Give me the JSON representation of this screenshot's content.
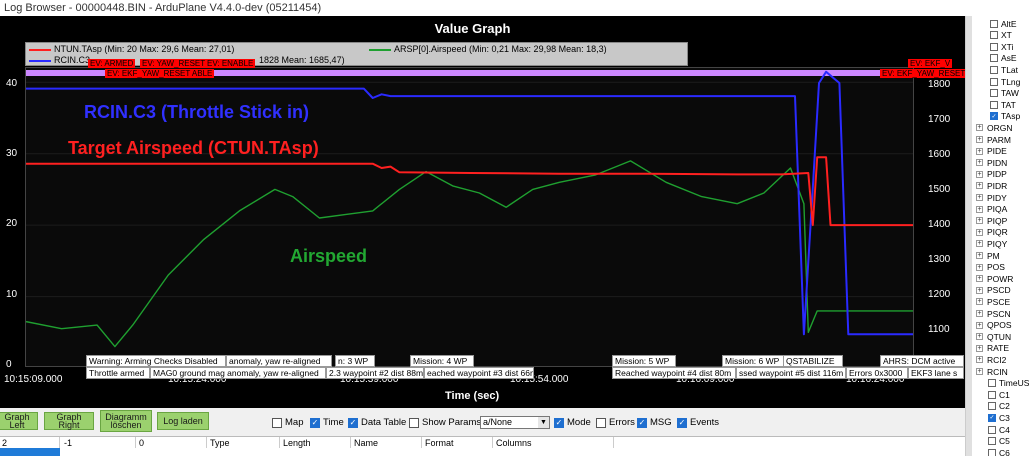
{
  "window": {
    "title": "Log Browser - 00000448.BIN - ArduPlane V4.4.0-dev (05211454)"
  },
  "graph": {
    "title": "Value Graph",
    "xlabel": "Time (sec)",
    "legend": {
      "ntun": "NTUN.TAsp  (Min: 20 Max: 29,6 Mean: 27,01)",
      "rcin": "RCIN.C3",
      "rcin_stats": "1828 Mean: 1685,47)",
      "arsp": "ARSP[0].Airspeed  (Min: 0,21 Max: 29,98 Mean: 18,3)"
    },
    "colors": {
      "ntun": "#ff2020",
      "rcin": "#2a2aff",
      "arsp": "#1fa030",
      "event_bar": "#cc88ff"
    },
    "events": [
      "EV: ARMED",
      "EV: YAW_RESET",
      "EV: ENABLE",
      "EV: EKF_YAW_RESET ABLE",
      "EV: EKF_YAW_RESET",
      "EV: EKF_V"
    ],
    "annotations": {
      "rcin": "RCIN.C3 (Throttle Stick in)",
      "target": "Target Airspeed (CTUN.TAsp)",
      "airspeed": "Airspeed"
    },
    "messages": [
      "Warning: Arming Checks Disabled",
      "Throttle armed",
      "anomaly, yaw re-aligned",
      "MAG0 ground mag anomaly, yaw re-aligned",
      "n: 3 WP",
      "2.3 waypoint #2 dist 88m",
      "Mission: 4 WP",
      "eached waypoint #3 dist 66m",
      "Mission: 5 WP",
      "Reached waypoint #4 dist 80m",
      "Mission: 6 WP",
      "ssed waypoint #5 dist 116m",
      "QSTABILIZE",
      "Errors 0x3000",
      "AHRS: DCM active",
      "EKF3 lane s"
    ]
  },
  "chart_data": {
    "type": "line",
    "xlabel": "Time (sec)",
    "x_ticks": [
      "10:15:09.000",
      "10:15:24.000",
      "10:15:39.000",
      "10:15:54.000",
      "10:16:09.000",
      "10:16:24.000"
    ],
    "y_left_ticks": [
      "0",
      "10",
      "20",
      "30",
      "40"
    ],
    "y_right_ticks": [
      "1100",
      "1200",
      "1300",
      "1400",
      "1500",
      "1600",
      "1700",
      "1800"
    ],
    "ylim_left": [
      0,
      42
    ],
    "ylim_right": [
      1020,
      1820
    ],
    "xlim": [
      0,
      1
    ],
    "series": [
      {
        "name": "NTUN.TAsp",
        "axis": "left",
        "x": [
          0,
          0.39,
          0.4,
          0.41,
          0.42,
          0.5,
          0.6,
          0.7,
          0.8,
          0.85,
          0.88,
          0.885,
          0.89,
          0.9,
          0.905,
          1.0
        ],
        "values": [
          28.6,
          28.6,
          28.0,
          28.2,
          27.4,
          27.3,
          27.2,
          27.2,
          27.1,
          27.1,
          27.3,
          20.0,
          29.5,
          29.5,
          20.0,
          20.0
        ]
      },
      {
        "name": "RCIN.C3",
        "axis": "right",
        "x": [
          0,
          0.38,
          0.39,
          0.4,
          0.41,
          0.5,
          0.6,
          0.7,
          0.8,
          0.865,
          0.875,
          0.885,
          0.892,
          0.9,
          0.915,
          0.925,
          0.935,
          1.0
        ],
        "values": [
          1765,
          1765,
          1740,
          1750,
          1745,
          1745,
          1745,
          1745,
          1745,
          1745,
          1110,
          1500,
          1780,
          1810,
          1780,
          1110,
          1110,
          1110
        ]
      },
      {
        "name": "ARSP[0].Airspeed",
        "axis": "left",
        "x": [
          0,
          0.04,
          0.08,
          0.1,
          0.12,
          0.16,
          0.2,
          0.24,
          0.28,
          0.3,
          0.33,
          0.36,
          0.39,
          0.42,
          0.45,
          0.48,
          0.51,
          0.54,
          0.57,
          0.6,
          0.64,
          0.68,
          0.72,
          0.76,
          0.8,
          0.83,
          0.86,
          0.875,
          0.88,
          0.89,
          0.9,
          1.0
        ],
        "values": [
          6.5,
          5.5,
          6.0,
          3.0,
          6.0,
          13.0,
          18.0,
          22.0,
          25.0,
          24.0,
          21.0,
          21.5,
          22.0,
          25.0,
          27.5,
          25.5,
          24.5,
          22.5,
          25.0,
          26.0,
          27.0,
          29.0,
          26.0,
          24.0,
          23.0,
          24.5,
          28.0,
          23.0,
          5.0,
          8.0,
          8.0,
          8.0
        ]
      }
    ]
  },
  "toolbar": {
    "graph_left": "Graph Left",
    "graph_right": "Graph Right",
    "diagram_clear": "Diagramm löschen",
    "load_log": "Log laden",
    "map": "Map",
    "time": "Time",
    "data_table": "Data Table",
    "show_params": "Show Params",
    "select_value": "a/None",
    "mode": "Mode",
    "errors": "Errors",
    "msg": "MSG",
    "events": "Events"
  },
  "table": {
    "headers": [
      "2",
      "-1",
      "0",
      "Type",
      "Length",
      "Name",
      "Format",
      "Columns"
    ]
  },
  "sidebar": {
    "checkbox_items": [
      {
        "label": "AltE",
        "checked": false
      },
      {
        "label": "XT",
        "checked": false
      },
      {
        "label": "XTi",
        "checked": false
      },
      {
        "label": "AsE",
        "checked": false
      },
      {
        "label": "TLat",
        "checked": false
      },
      {
        "label": "TLng",
        "checked": false
      },
      {
        "label": "TAW",
        "checked": false
      },
      {
        "label": "TAT",
        "checked": false
      },
      {
        "label": "TAsp",
        "checked": true
      }
    ],
    "groups": [
      "ORGN",
      "PARM",
      "PIDE",
      "PIDN",
      "PIDP",
      "PIDR",
      "PIDY",
      "PIQA",
      "PIQP",
      "PIQR",
      "PIQY",
      "PM",
      "POS",
      "POWR",
      "PSCD",
      "PSCE",
      "PSCN",
      "QPOS",
      "QTUN",
      "RATE",
      "RCI2",
      "RCIN"
    ],
    "rcin_items": [
      {
        "label": "TimeUS",
        "checked": false
      },
      {
        "label": "C1",
        "checked": false
      },
      {
        "label": "C2",
        "checked": false
      },
      {
        "label": "C3",
        "checked": true
      },
      {
        "label": "C4",
        "checked": false
      },
      {
        "label": "C5",
        "checked": false
      },
      {
        "label": "C6",
        "checked": false
      }
    ]
  }
}
